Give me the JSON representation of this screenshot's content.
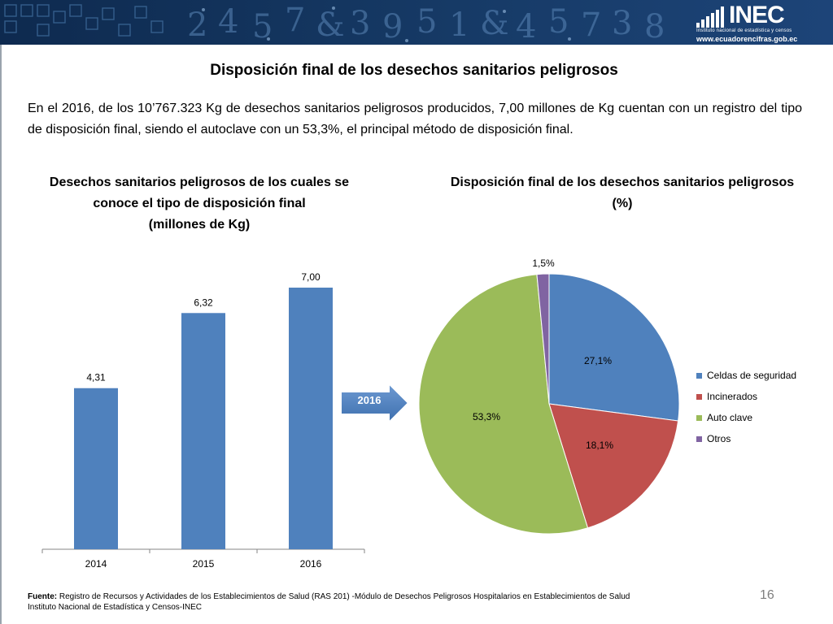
{
  "header": {
    "logo_text": "INEC",
    "logo_sub": "Instituto nacional de estadística y censos",
    "logo_url": "www.ecuadorencifras.gob.ec"
  },
  "slide": {
    "title": "Disposición final de los desechos sanitarios peligrosos",
    "intro": "En el 2016, de los 10’767.323 Kg de desechos sanitarios peligrosos producidos, 7,00 millones de Kg cuentan con un registro del tipo de disposición final,  siendo el autoclave con un  53,3%,  el principal método de disposición final.",
    "arrow_label": "2016",
    "page_number": "16"
  },
  "footer": {
    "source_label": "Fuente:",
    "source_text": "Registro de Recursos y Actividades de los Establecimientos de Salud (RAS 201) -Módulo de Desechos Peligrosos Hospitalarios en Establecimientos de Salud",
    "institution": "Instituto Nacional de Estadística y Censos-INEC"
  },
  "chart_data": [
    {
      "type": "bar",
      "title": "Desechos sanitarios peligrosos de los cuales se conoce el tipo de disposición final (millones de Kg)",
      "title_lines": [
        "Desechos sanitarios peligrosos de los cuales se",
        "conoce el tipo de disposición final",
        "(millones de Kg)"
      ],
      "categories": [
        "2014",
        "2015",
        "2016"
      ],
      "values": [
        4.31,
        6.32,
        7.0
      ],
      "value_labels": [
        "4,31",
        "6,32",
        "7,00"
      ],
      "ylim": [
        0,
        8
      ],
      "color": "#4f81bd",
      "grid": false
    },
    {
      "type": "pie",
      "title": "Disposición final de los desechos sanitarios peligrosos (%)",
      "title_lines": [
        "Disposición final de los desechos sanitarios peligrosos",
        "(%)"
      ],
      "categories": [
        "Celdas de seguridad",
        "Incinerados",
        "Auto clave",
        "Otros"
      ],
      "values": [
        27.1,
        18.1,
        53.3,
        1.5
      ],
      "value_labels": [
        "27,1%",
        "18,1%",
        "53,3%",
        "1,5%"
      ],
      "colors": [
        "#4f81bd",
        "#c0504d",
        "#9bbb59",
        "#8064a2"
      ],
      "legend_position": "right"
    }
  ]
}
